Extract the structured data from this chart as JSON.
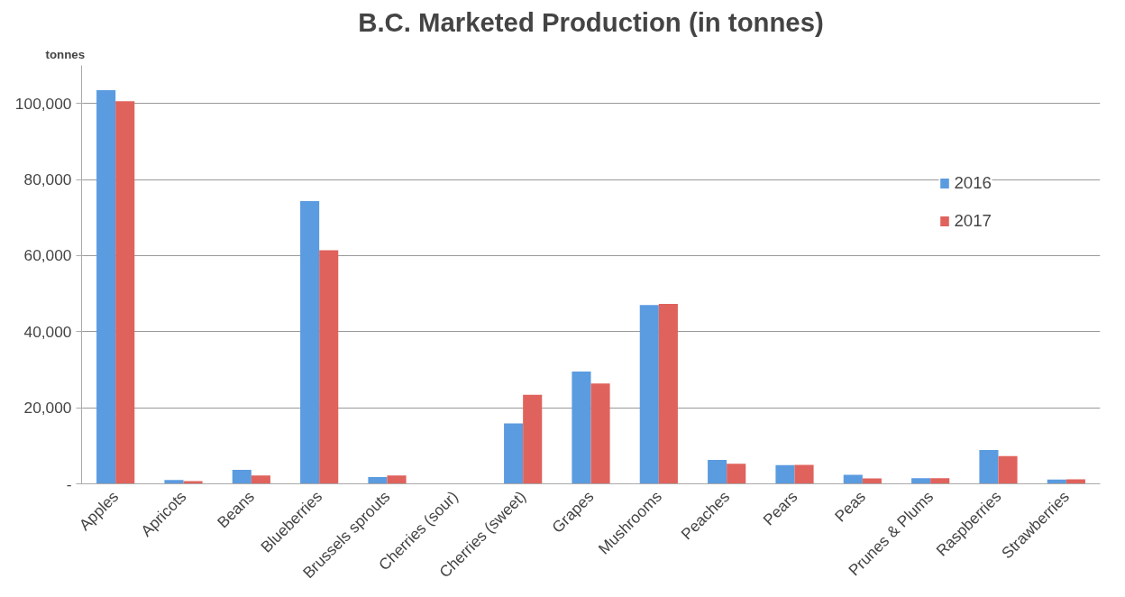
{
  "chart_data": {
    "type": "bar",
    "title": "B.C. Marketed Production (in tonnes)",
    "ylabel": "tonnes",
    "categories": [
      "Apples",
      "Apricots",
      "Beans",
      "Blueberries",
      "Brussels sprouts",
      "Cherries (sour)",
      "Cherries (sweet)",
      "Grapes",
      "Mushrooms",
      "Peaches",
      "Pears",
      "Peas",
      "Prunes & Plums",
      "Raspberries",
      "Strawberries"
    ],
    "series": [
      {
        "name": "2016",
        "color": "#5b9be0",
        "values": [
          103500,
          1000,
          3700,
          74300,
          1800,
          null,
          15900,
          29500,
          47000,
          6300,
          4900,
          2400,
          1500,
          8900,
          1100
        ]
      },
      {
        "name": "2017",
        "color": "#e0625c",
        "values": [
          100600,
          700,
          2200,
          61400,
          2200,
          null,
          23400,
          26400,
          47300,
          5300,
          5000,
          1400,
          1500,
          7300,
          1200
        ]
      }
    ],
    "ylim": [
      0,
      110000
    ],
    "yticks": [
      {
        "value": 0,
        "label": "-"
      },
      {
        "value": 20000,
        "label": "20,000"
      },
      {
        "value": 40000,
        "label": "40,000"
      },
      {
        "value": 60000,
        "label": "60,000"
      },
      {
        "value": 80000,
        "label": "80,000"
      },
      {
        "value": 100000,
        "label": "100,000"
      }
    ],
    "grid": "y",
    "legend": "top right"
  }
}
